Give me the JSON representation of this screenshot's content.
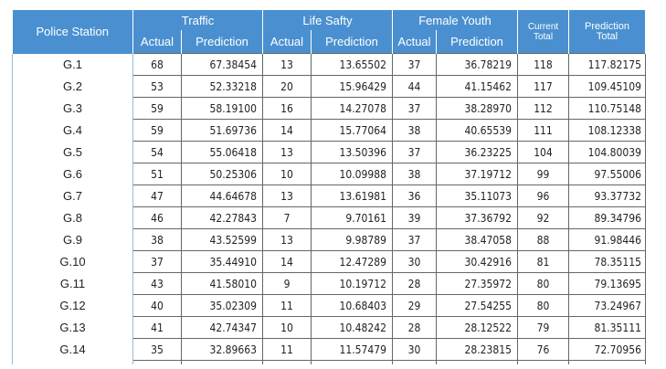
{
  "header": {
    "station": "Police Station",
    "traffic": "Traffic",
    "life_safety": "Life Safty",
    "female_youth": "Female Youth",
    "actual": "Actual",
    "prediction": "Prediction",
    "current_total_line1": "Current",
    "current_total_line2": "Total",
    "prediction_total_line1": "Prediction",
    "prediction_total_line2": "Total"
  },
  "rows": [
    {
      "station": "G.1",
      "t_act": "68",
      "t_pred": "67.38454",
      "l_act": "13",
      "l_pred": "13.65502",
      "f_act": "37",
      "f_pred": "36.78219",
      "cur": "118",
      "pred": "117.82175"
    },
    {
      "station": "G.2",
      "t_act": "53",
      "t_pred": "52.33218",
      "l_act": "20",
      "l_pred": "15.96429",
      "f_act": "44",
      "f_pred": "41.15462",
      "cur": "117",
      "pred": "109.45109"
    },
    {
      "station": "G.3",
      "t_act": "59",
      "t_pred": "58.19100",
      "l_act": "16",
      "l_pred": "14.27078",
      "f_act": "37",
      "f_pred": "38.28970",
      "cur": "112",
      "pred": "110.75148"
    },
    {
      "station": "G.4",
      "t_act": "59",
      "t_pred": "51.69736",
      "l_act": "14",
      "l_pred": "15.77064",
      "f_act": "38",
      "f_pred": "40.65539",
      "cur": "111",
      "pred": "108.12338"
    },
    {
      "station": "G.5",
      "t_act": "54",
      "t_pred": "55.06418",
      "l_act": "13",
      "l_pred": "13.50396",
      "f_act": "37",
      "f_pred": "36.23225",
      "cur": "104",
      "pred": "104.80039"
    },
    {
      "station": "G.6",
      "t_act": "51",
      "t_pred": "50.25306",
      "l_act": "10",
      "l_pred": "10.09988",
      "f_act": "38",
      "f_pred": "37.19712",
      "cur": "99",
      "pred": "97.55006"
    },
    {
      "station": "G.7",
      "t_act": "47",
      "t_pred": "44.64678",
      "l_act": "13",
      "l_pred": "13.61981",
      "f_act": "36",
      "f_pred": "35.11073",
      "cur": "96",
      "pred": "93.37732"
    },
    {
      "station": "G.8",
      "t_act": "46",
      "t_pred": "42.27843",
      "l_act": "7",
      "l_pred": "9.70161",
      "f_act": "39",
      "f_pred": "37.36792",
      "cur": "92",
      "pred": "89.34796"
    },
    {
      "station": "G.9",
      "t_act": "38",
      "t_pred": "43.52599",
      "l_act": "13",
      "l_pred": "9.98789",
      "f_act": "37",
      "f_pred": "38.47058",
      "cur": "88",
      "pred": "91.98446"
    },
    {
      "station": "G.10",
      "t_act": "37",
      "t_pred": "35.44910",
      "l_act": "14",
      "l_pred": "12.47289",
      "f_act": "30",
      "f_pred": "30.42916",
      "cur": "81",
      "pred": "78.35115"
    },
    {
      "station": "G.11",
      "t_act": "43",
      "t_pred": "41.58010",
      "l_act": "9",
      "l_pred": "10.19712",
      "f_act": "28",
      "f_pred": "27.35972",
      "cur": "80",
      "pred": "79.13695"
    },
    {
      "station": "G.12",
      "t_act": "40",
      "t_pred": "35.02309",
      "l_act": "11",
      "l_pred": "10.68403",
      "f_act": "29",
      "f_pred": "27.54255",
      "cur": "80",
      "pred": "73.24967"
    },
    {
      "station": "G.13",
      "t_act": "41",
      "t_pred": "42.74347",
      "l_act": "10",
      "l_pred": "10.48242",
      "f_act": "28",
      "f_pred": "28.12522",
      "cur": "79",
      "pred": "81.35111"
    },
    {
      "station": "G.14",
      "t_act": "35",
      "t_pred": "32.89663",
      "l_act": "11",
      "l_pred": "11.57479",
      "f_act": "30",
      "f_pred": "28.23815",
      "cur": "76",
      "pred": "72.70956"
    }
  ],
  "colors": {
    "header_bg": "#4a90d0",
    "header_text": "#ffffff",
    "cell_border": "#666666"
  }
}
